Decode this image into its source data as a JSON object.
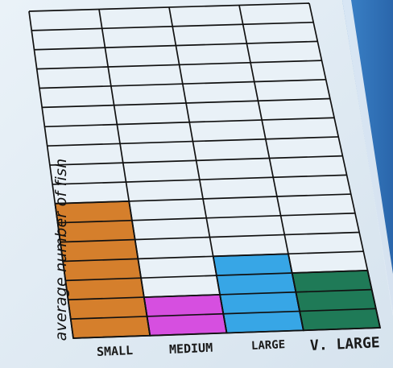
{
  "chart_data": {
    "type": "bar",
    "title": "",
    "xlabel": "",
    "ylabel": "average number of fish",
    "categories": [
      "SMALL",
      "MEDIUM",
      "LARGE",
      "V. LARGE"
    ],
    "values": [
      7,
      2,
      4,
      3
    ],
    "ylim": [
      0,
      17
    ],
    "grid": true,
    "legend": "none",
    "colors": [
      "#d57f2c",
      "#d64fe0",
      "#37a6e6",
      "#1f7a57"
    ]
  },
  "colors": {
    "background": "#2f6fb0",
    "paper": "#dfe9f1",
    "empty_cell": "#e9f1f7",
    "gridline": "#111111"
  }
}
